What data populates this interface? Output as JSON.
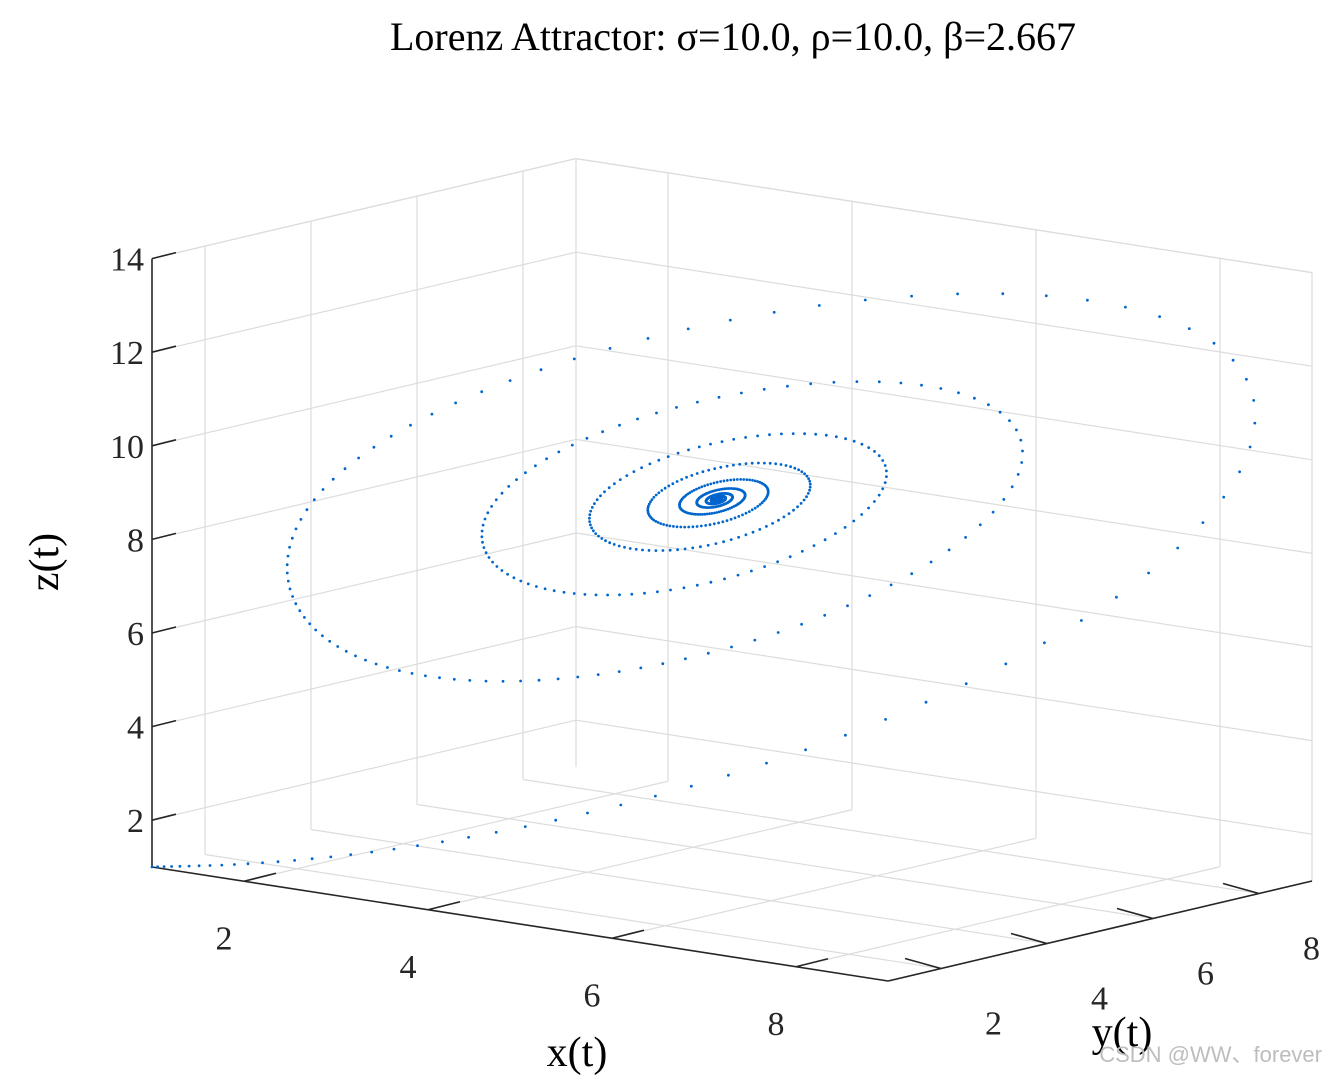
{
  "chart_data": {
    "type": "scatter",
    "title": "Lorenz Attractor: σ=10.0, ρ=10.0, β=2.667",
    "xlabel": "x(t)",
    "ylabel": "y(t)",
    "zlabel": "z(t)",
    "xlim": [
      1,
      9
    ],
    "ylim": [
      1,
      9
    ],
    "zlim": [
      1,
      14
    ],
    "x_ticks": [
      "2",
      "4",
      "6",
      "8"
    ],
    "y_ticks": [
      "2",
      "4",
      "6",
      "8"
    ],
    "z_ticks": [
      "2",
      "4",
      "6",
      "8",
      "10",
      "12",
      "14"
    ],
    "grid": true,
    "series": [
      {
        "marker": "point",
        "color": "#0066cc",
        "start": {
          "x": 1,
          "y": 1,
          "z": 1
        },
        "fixed_point": {
          "x": 6.0,
          "y": 6.0,
          "z": 9.0
        }
      }
    ]
  },
  "watermark": "CSDN @WW、forever"
}
